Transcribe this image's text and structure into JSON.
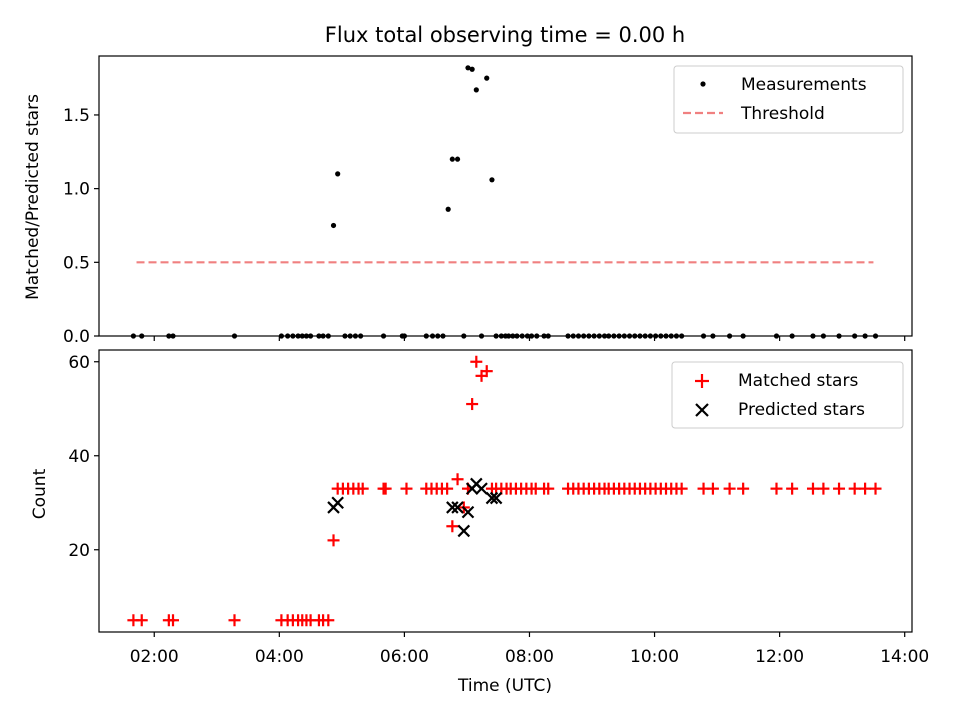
{
  "chart_data": [
    {
      "type": "scatter",
      "title": "Flux total observing time = 0.00 h",
      "ylabel": "Matched/Predicted stars",
      "ylim": [
        0,
        1.9
      ],
      "xlim": [
        "01:07",
        "14:07"
      ],
      "yticks": [
        0.0,
        0.5,
        1.0,
        1.5
      ],
      "ytick_labels": [
        "0.0",
        "0.5",
        "1.0",
        "1.5"
      ],
      "legend_position": "top-right",
      "legend": [
        "Measurements",
        "Threshold"
      ],
      "colors": {
        "measurements": "#000000",
        "threshold": "#f08080"
      },
      "threshold": {
        "value": 0.5,
        "x": [
          "01:43",
          "13:30"
        ]
      },
      "series": [
        {
          "name": "Measurements",
          "x": [
            "01:40",
            "01:48",
            "02:14",
            "02:18",
            "03:17",
            "04:02",
            "04:08",
            "04:13",
            "04:18",
            "04:22",
            "04:26",
            "04:30",
            "04:38",
            "04:42",
            "04:47",
            "04:52",
            "04:56",
            "05:03",
            "05:08",
            "05:13",
            "05:18",
            "05:40",
            "05:58",
            "06:00",
            "06:21",
            "06:27",
            "06:32",
            "06:37",
            "06:42",
            "06:46",
            "06:51",
            "06:57",
            "07:01",
            "07:05",
            "07:09",
            "07:14",
            "07:19",
            "07:24",
            "07:28",
            "07:33",
            "07:37",
            "07:40",
            "07:44",
            "07:48",
            "07:53",
            "07:58",
            "08:02",
            "08:07",
            "08:14",
            "08:18",
            "08:37",
            "08:42",
            "08:47",
            "08:52",
            "08:57",
            "09:02",
            "09:07",
            "09:12",
            "09:16",
            "09:21",
            "09:26",
            "09:31",
            "09:36",
            "09:41",
            "09:46",
            "09:51",
            "09:56",
            "10:01",
            "10:06",
            "10:11",
            "10:16",
            "10:21",
            "10:26",
            "10:47",
            "10:56",
            "11:12",
            "11:25",
            "11:57",
            "12:12",
            "12:32",
            "12:42",
            "12:57",
            "13:12",
            "13:22",
            "13:32"
          ],
          "y": [
            0,
            0,
            0,
            0,
            0,
            0,
            0,
            0,
            0,
            0,
            0,
            0,
            0,
            0,
            0,
            0.75,
            1.1,
            0,
            0,
            0,
            0,
            0,
            0,
            0,
            0,
            0,
            0,
            0,
            0.86,
            1.2,
            1.2,
            0,
            1.82,
            1.81,
            1.67,
            0,
            1.75,
            1.06,
            0,
            0,
            0,
            0,
            0,
            0,
            0,
            0,
            0,
            0,
            0,
            0,
            0,
            0,
            0,
            0,
            0,
            0,
            0,
            0,
            0,
            0,
            0,
            0,
            0,
            0,
            0,
            0,
            0,
            0,
            0,
            0,
            0,
            0,
            0,
            0,
            0,
            0,
            0,
            0,
            0,
            0,
            0,
            0,
            0,
            0,
            0
          ]
        }
      ]
    },
    {
      "type": "scatter",
      "xlabel": "Time (UTC)",
      "ylabel": "Count",
      "ylim": [
        2.5,
        62.5
      ],
      "xlim": [
        "01:07",
        "14:07"
      ],
      "yticks": [
        20,
        40,
        60
      ],
      "ytick_labels": [
        "20",
        "40",
        "60"
      ],
      "xticks": [
        "02:00",
        "04:00",
        "06:00",
        "08:00",
        "10:00",
        "12:00",
        "14:00"
      ],
      "legend_position": "top-right",
      "colors": {
        "matched": "#ff0000",
        "predicted": "#000000"
      },
      "series": [
        {
          "name": "Matched stars",
          "x": [
            "01:40",
            "01:48",
            "02:14",
            "02:18",
            "03:17",
            "04:02",
            "04:08",
            "04:13",
            "04:18",
            "04:22",
            "04:26",
            "04:30",
            "04:38",
            "04:42",
            "04:47",
            "04:52",
            "04:56",
            "05:01",
            "05:06",
            "05:11",
            "05:16",
            "05:20",
            "05:40",
            "05:42",
            "06:02",
            "06:21",
            "06:26",
            "06:31",
            "06:36",
            "06:41",
            "06:46",
            "06:51",
            "06:57",
            "07:01",
            "07:05",
            "07:09",
            "07:14",
            "07:19",
            "07:24",
            "07:28",
            "07:33",
            "07:38",
            "07:42",
            "07:47",
            "07:52",
            "07:57",
            "08:02",
            "08:06",
            "08:14",
            "08:18",
            "08:37",
            "08:42",
            "08:47",
            "08:52",
            "08:57",
            "09:02",
            "09:07",
            "09:12",
            "09:16",
            "09:21",
            "09:26",
            "09:31",
            "09:36",
            "09:41",
            "09:46",
            "09:51",
            "09:56",
            "10:01",
            "10:06",
            "10:11",
            "10:16",
            "10:21",
            "10:26",
            "10:47",
            "10:56",
            "11:12",
            "11:25",
            "11:57",
            "12:12",
            "12:32",
            "12:42",
            "12:57",
            "13:12",
            "13:22",
            "13:32"
          ],
          "y": [
            5,
            5,
            5,
            5,
            5,
            5,
            5,
            5,
            5,
            5,
            5,
            5,
            5,
            5,
            5,
            22,
            33,
            33,
            33,
            33,
            33,
            33,
            33,
            33,
            33,
            33,
            33,
            33,
            33,
            33,
            25,
            35,
            29,
            33,
            51,
            60,
            57,
            58,
            33,
            33,
            33,
            33,
            33,
            33,
            33,
            33,
            33,
            33,
            33,
            33,
            33,
            33,
            33,
            33,
            33,
            33,
            33,
            33,
            33,
            33,
            33,
            33,
            33,
            33,
            33,
            33,
            33,
            33,
            33,
            33,
            33,
            33,
            33,
            33,
            33,
            33,
            33,
            33,
            33,
            33,
            33,
            33,
            33,
            33,
            33
          ]
        },
        {
          "name": "Predicted stars",
          "x": [
            "04:52",
            "04:56",
            "06:46",
            "06:51",
            "06:57",
            "07:01",
            "07:05",
            "07:09",
            "07:14",
            "07:24",
            "07:28"
          ],
          "y": [
            29,
            30,
            29,
            29,
            24,
            28,
            33,
            34,
            33,
            31,
            31
          ]
        }
      ]
    }
  ]
}
